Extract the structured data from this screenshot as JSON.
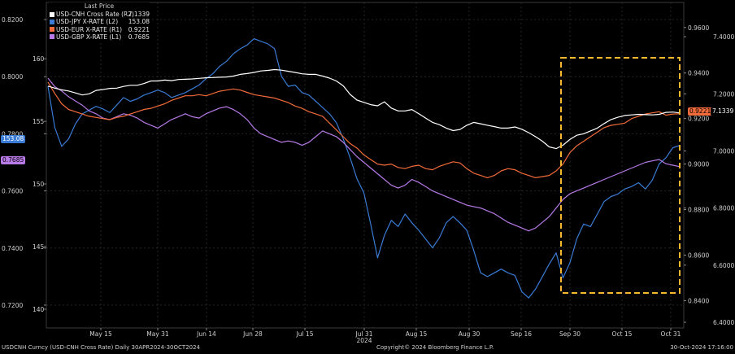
{
  "legend": {
    "header": "Last Price",
    "items": [
      {
        "label": "USD-CNH Cross Rate (R2)",
        "value": "7.1339",
        "color": "#ffffff"
      },
      {
        "label": "USD-JPY X-RATE (L2)",
        "value": "153.08",
        "color": "#3a7bd5"
      },
      {
        "label": "USD-EUR X-RATE (R1)",
        "value": "0.9221",
        "color": "#f26b3a"
      },
      {
        "label": "USD-GBP X-RATE (L1)",
        "value": "0.7685",
        "color": "#b77ae6"
      }
    ]
  },
  "last_value_tags": {
    "jpy": "153.08",
    "gbp": "0.7685",
    "eur": "0.9221",
    "cnh": "7.1339"
  },
  "footer": {
    "left": "USDCNH Curncy (USD-CNH Cross Rate)  Daily 30APR2024-30OCT2024",
    "center": "Copyright© 2024 Bloomberg Finance L.P.",
    "right": "30-Oct-2024 17:16:00"
  },
  "chart_data": {
    "type": "line",
    "x_ticks": [
      "May 15",
      "May 31",
      "Jun 14",
      "Jun 28",
      "Jul 15",
      "Jul 31",
      "Aug 15",
      "Aug 30",
      "Sep 16",
      "Sep 30",
      "Oct 15",
      "Oct 31"
    ],
    "x_year_label": "2024",
    "grid": true,
    "highlight_box": {
      "x_start": "Sep 27",
      "x_end": "Oct 31",
      "style": "dashed",
      "color": "#f5b82e"
    },
    "axes": {
      "L1": {
        "side": "left",
        "ticks": [
          "0.8200",
          "0.8000",
          "0.7800",
          "0.7600",
          "0.7400",
          "0.7200"
        ],
        "range": [
          0.712,
          0.826
        ]
      },
      "L2": {
        "side": "left",
        "ticks": [
          "160",
          "155",
          "150",
          "145",
          "140"
        ],
        "range": [
          138.5,
          164.5
        ]
      },
      "R1": {
        "side": "right",
        "ticks": [
          "0.9600",
          "0.9400",
          "0.9200",
          "0.9000",
          "0.8800",
          "0.8600",
          "0.8400"
        ],
        "range": [
          0.828,
          0.971
        ]
      },
      "R2": {
        "side": "right",
        "ticks": [
          "7.4000",
          "7.2000",
          "7.0000",
          "6.8000",
          "6.6000",
          "6.4000"
        ],
        "range": [
          6.38,
          7.52
        ]
      }
    },
    "series": [
      {
        "name": "USD-CNH Cross Rate (R2)",
        "axis": "R2",
        "color": "#ffffff",
        "values": [
          7.227,
          7.22,
          7.214,
          7.21,
          7.203,
          7.196,
          7.2,
          7.212,
          7.215,
          7.219,
          7.22,
          7.226,
          7.23,
          7.23,
          7.236,
          7.245,
          7.245,
          7.248,
          7.246,
          7.25,
          7.251,
          7.252,
          7.254,
          7.256,
          7.257,
          7.258,
          7.259,
          7.262,
          7.268,
          7.271,
          7.275,
          7.28,
          7.282,
          7.285,
          7.283,
          7.279,
          7.275,
          7.27,
          7.268,
          7.268,
          7.262,
          7.255,
          7.245,
          7.228,
          7.198,
          7.178,
          7.17,
          7.162,
          7.158,
          7.172,
          7.15,
          7.14,
          7.14,
          7.145,
          7.13,
          7.115,
          7.1,
          7.092,
          7.08,
          7.071,
          7.075,
          7.09,
          7.1,
          7.095,
          7.09,
          7.085,
          7.08,
          7.08,
          7.084,
          7.076,
          7.064,
          7.05,
          7.034,
          7.014,
          7.008,
          7.02,
          7.04,
          7.055,
          7.06,
          7.07,
          7.08,
          7.096,
          7.11,
          7.118,
          7.124,
          7.126,
          7.128,
          7.127,
          7.126,
          7.128,
          7.135,
          7.136,
          7.133
        ]
      },
      {
        "name": "USD-JPY X-RATE (L2)",
        "axis": "L2",
        "color": "#3a7bd5",
        "values": [
          157.8,
          154.5,
          153.0,
          153.6,
          154.8,
          155.6,
          155.9,
          156.2,
          156.0,
          155.7,
          156.3,
          156.9,
          156.6,
          156.8,
          157.1,
          157.3,
          157.5,
          157.3,
          156.9,
          157.1,
          157.3,
          157.6,
          157.9,
          158.4,
          158.8,
          159.4,
          159.8,
          160.4,
          160.8,
          161.1,
          161.6,
          161.4,
          161.2,
          160.8,
          158.6,
          157.8,
          157.9,
          157.3,
          157.1,
          156.6,
          156.1,
          155.6,
          154.9,
          153.6,
          152.1,
          150.4,
          149.3,
          146.8,
          144.1,
          145.9,
          147.1,
          146.6,
          147.6,
          146.9,
          146.3,
          145.6,
          144.9,
          145.7,
          146.9,
          147.4,
          146.9,
          146.3,
          144.7,
          142.9,
          142.6,
          142.9,
          143.2,
          142.9,
          142.7,
          141.4,
          140.9,
          141.6,
          142.6,
          143.6,
          144.5,
          142.5,
          143.7,
          145.6,
          146.8,
          146.6,
          147.6,
          148.6,
          149.0,
          149.2,
          149.6,
          149.8,
          150.1,
          149.6,
          150.3,
          151.6,
          152.1,
          152.9,
          153.08
        ]
      },
      {
        "name": "USD-EUR X-RATE (R1)",
        "axis": "R1",
        "color": "#f26b3a",
        "values": [
          0.936,
          0.931,
          0.9265,
          0.924,
          0.923,
          0.922,
          0.921,
          0.9205,
          0.92,
          0.9195,
          0.9205,
          0.921,
          0.922,
          0.923,
          0.924,
          0.9245,
          0.9255,
          0.9265,
          0.928,
          0.929,
          0.93,
          0.93,
          0.9305,
          0.93,
          0.931,
          0.932,
          0.9325,
          0.933,
          0.9325,
          0.9315,
          0.9305,
          0.93,
          0.9295,
          0.929,
          0.928,
          0.927,
          0.9255,
          0.9245,
          0.923,
          0.922,
          0.921,
          0.918,
          0.915,
          0.912,
          0.909,
          0.907,
          0.904,
          0.902,
          0.9,
          0.8995,
          0.9,
          0.8985,
          0.898,
          0.899,
          0.8995,
          0.898,
          0.8975,
          0.899,
          0.9,
          0.901,
          0.9005,
          0.898,
          0.896,
          0.895,
          0.894,
          0.895,
          0.897,
          0.898,
          0.8975,
          0.896,
          0.895,
          0.894,
          0.8945,
          0.895,
          0.897,
          0.9,
          0.905,
          0.908,
          0.91,
          0.912,
          0.914,
          0.916,
          0.917,
          0.9175,
          0.918,
          0.92,
          0.921,
          0.922,
          0.9225,
          0.923,
          0.9215,
          0.922,
          0.9221
        ]
      },
      {
        "name": "USD-GBP X-RATE (L1)",
        "axis": "L1",
        "color": "#b77ae6",
        "values": [
          0.7995,
          0.7965,
          0.795,
          0.793,
          0.7915,
          0.79,
          0.788,
          0.787,
          0.7855,
          0.785,
          0.786,
          0.787,
          0.7865,
          0.7855,
          0.784,
          0.783,
          0.782,
          0.7835,
          0.785,
          0.786,
          0.787,
          0.786,
          0.7855,
          0.787,
          0.788,
          0.789,
          0.7895,
          0.7885,
          0.787,
          0.785,
          0.782,
          0.78,
          0.779,
          0.778,
          0.777,
          0.7775,
          0.777,
          0.776,
          0.777,
          0.779,
          0.781,
          0.78,
          0.779,
          0.777,
          0.7745,
          0.772,
          0.77,
          0.768,
          0.766,
          0.764,
          0.762,
          0.761,
          0.762,
          0.764,
          0.763,
          0.7615,
          0.76,
          0.759,
          0.758,
          0.757,
          0.756,
          0.755,
          0.7545,
          0.754,
          0.753,
          0.752,
          0.7505,
          0.749,
          0.748,
          0.747,
          0.746,
          0.747,
          0.749,
          0.751,
          0.754,
          0.757,
          0.759,
          0.76,
          0.761,
          0.762,
          0.763,
          0.764,
          0.765,
          0.766,
          0.767,
          0.768,
          0.769,
          0.77,
          0.7705,
          0.771,
          0.7695,
          0.769,
          0.7685
        ]
      }
    ]
  }
}
